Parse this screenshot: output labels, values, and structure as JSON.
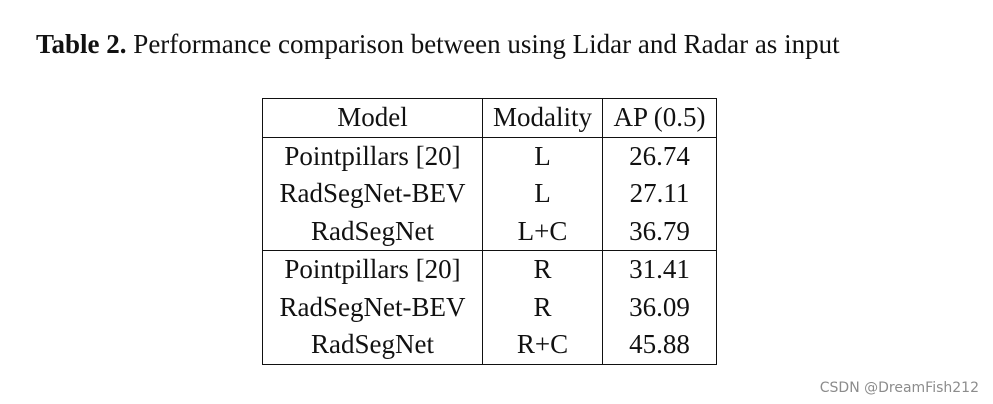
{
  "caption": {
    "label": "Table 2.",
    "text": "Performance comparison between using Lidar and Radar as input"
  },
  "table": {
    "headers": [
      "Model",
      "Modality",
      "AP (0.5)"
    ],
    "groups": [
      [
        [
          "Pointpillars [20]",
          "L",
          "26.74"
        ],
        [
          "RadSegNet-BEV",
          "L",
          "27.11"
        ],
        [
          "RadSegNet",
          "L+C",
          "36.79"
        ]
      ],
      [
        [
          "Pointpillars [20]",
          "R",
          "31.41"
        ],
        [
          "RadSegNet-BEV",
          "R",
          "36.09"
        ],
        [
          "RadSegNet",
          "R+C",
          "45.88"
        ]
      ]
    ]
  },
  "watermark": "CSDN @DreamFish212"
}
